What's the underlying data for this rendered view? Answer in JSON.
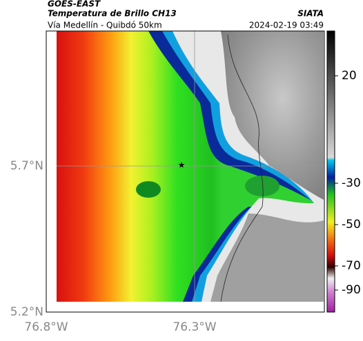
{
  "header": {
    "source": "GOES-EAST",
    "product": "Temperatura de Brillo CH13",
    "organization": "SIATA",
    "route": "Vía Medellín - Quibdó 50km",
    "timestamp": "2024-02-19 03:49"
  },
  "axes": {
    "lat_ticks": [
      "5.7°N",
      "5.2°N"
    ],
    "lon_ticks": [
      "76.8°W",
      "76.3°W"
    ]
  },
  "colorbar": {
    "ticks": [
      20,
      -30,
      -50,
      -70,
      -90
    ]
  }
}
